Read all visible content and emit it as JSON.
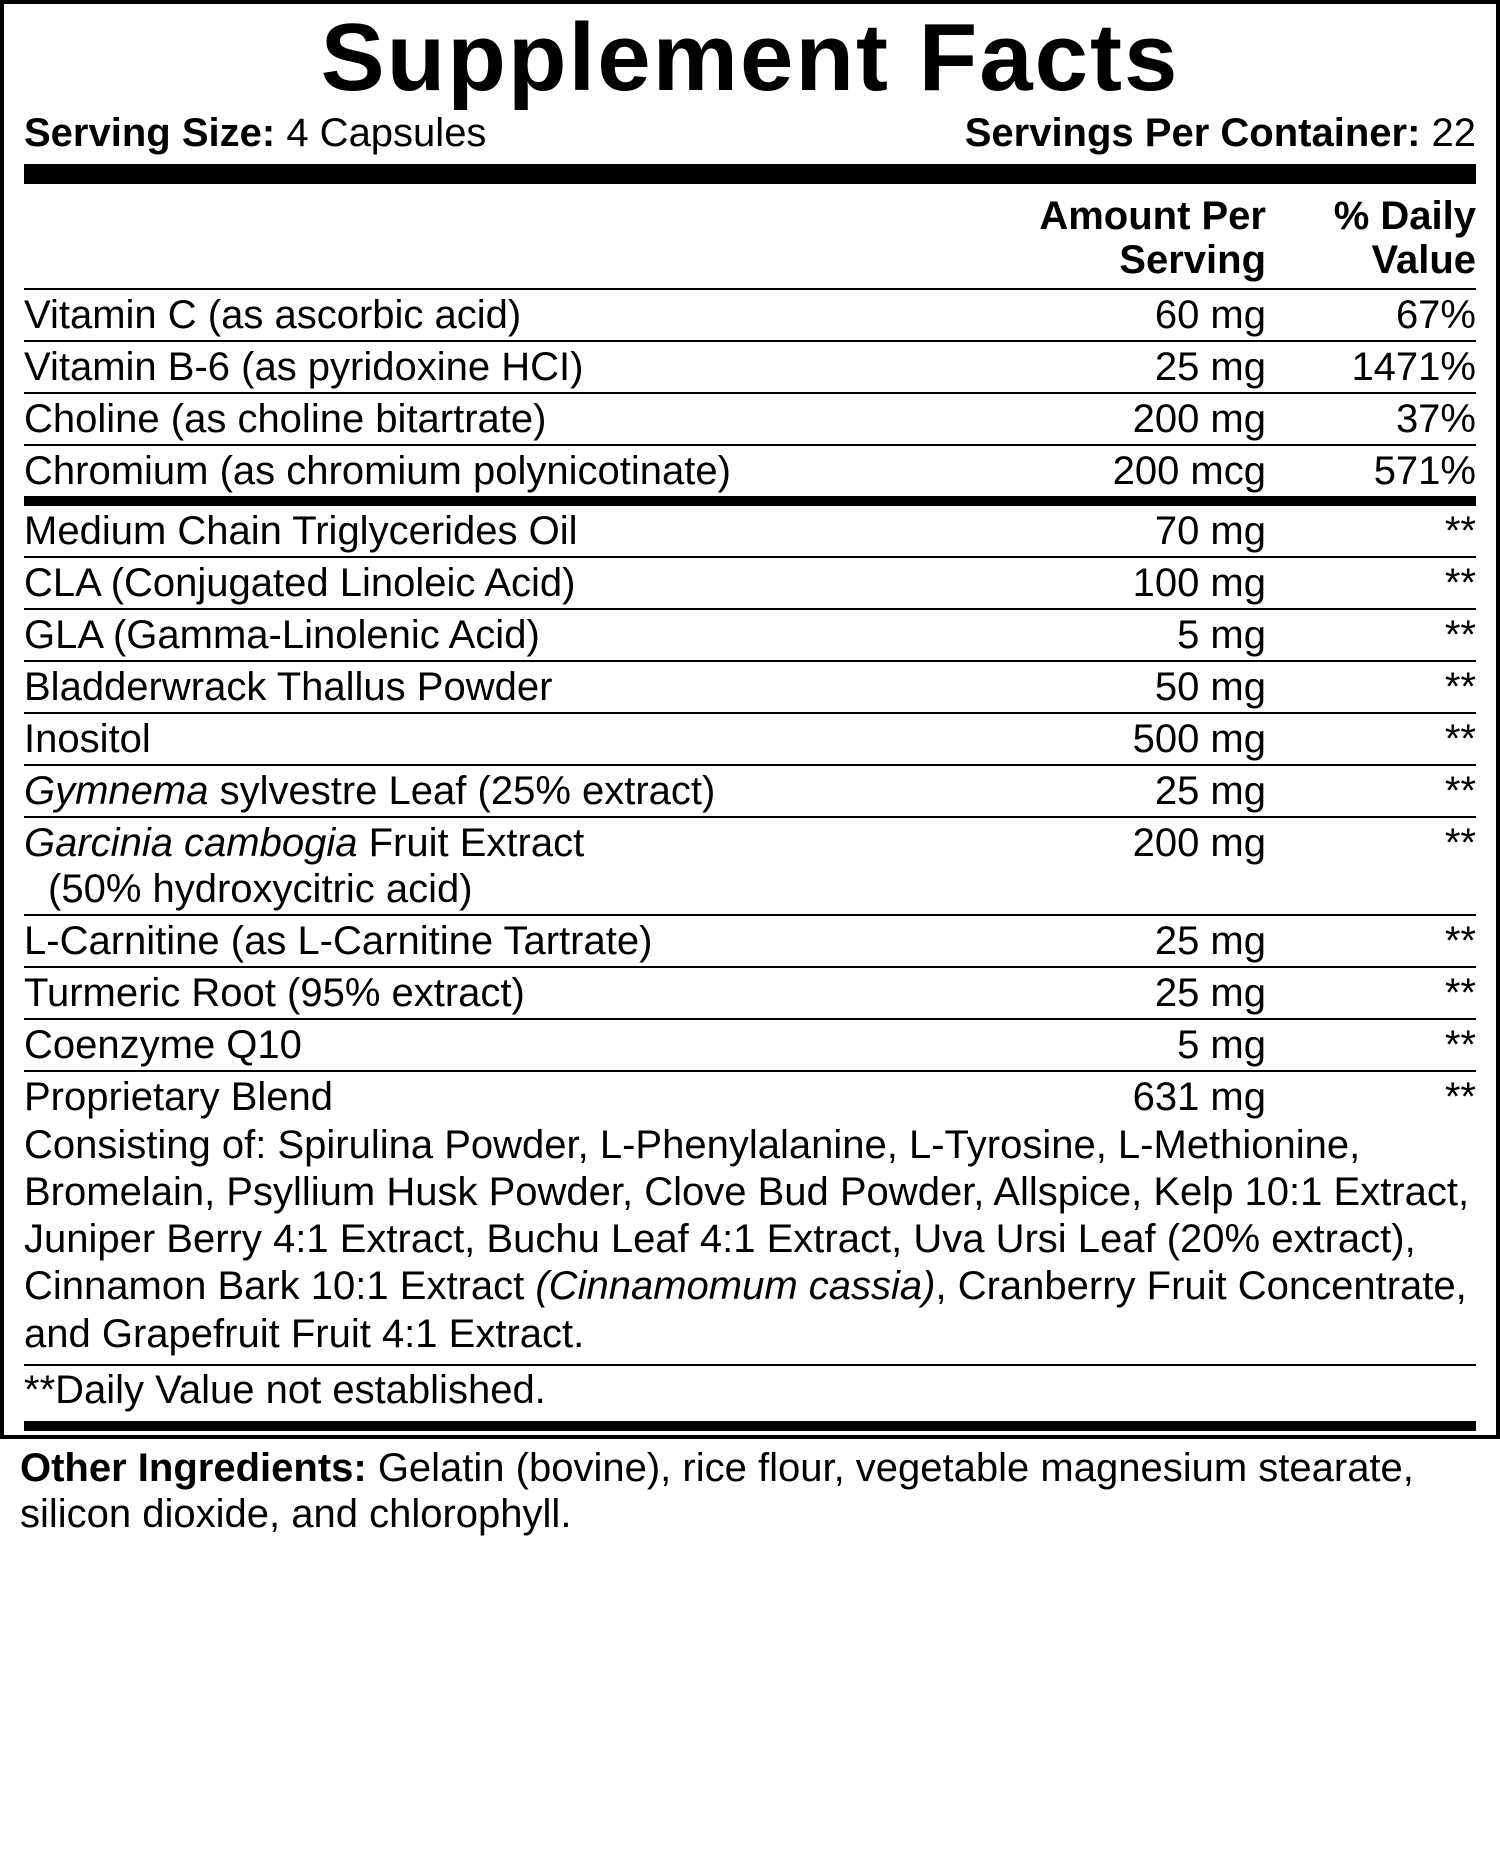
{
  "title": "Supplement Facts",
  "serving": {
    "size_label": "Serving Size:",
    "size_value": " 4 Capsules",
    "per_container_label": "Servings Per Container:",
    "per_container_value": " 22"
  },
  "headers": {
    "amount_line1": "Amount Per",
    "amount_line2": "Serving",
    "dv_line1": "% Daily",
    "dv_line2": "Value"
  },
  "section1": [
    {
      "name": "Vitamin C (as ascorbic acid)",
      "amount": "60 mg",
      "dv": "67%"
    },
    {
      "name": "Vitamin B-6 (as pyridoxine HCI)",
      "amount": "25 mg",
      "dv": "1471%"
    },
    {
      "name": "Choline (as choline bitartrate)",
      "amount": "200 mg",
      "dv": "37%"
    },
    {
      "name": "Chromium (as chromium polynicotinate)",
      "amount": "200 mcg",
      "dv": "571%"
    }
  ],
  "section2": [
    {
      "name": "Medium Chain Triglycerides Oil",
      "amount": "70 mg",
      "dv": "**"
    },
    {
      "name": "CLA (Conjugated Linoleic Acid)",
      "amount": "100 mg",
      "dv": "**"
    },
    {
      "name": "GLA (Gamma-Linolenic Acid)",
      "amount": "5 mg",
      "dv": "**"
    },
    {
      "name": "Bladderwrack Thallus Powder",
      "amount": "50 mg",
      "dv": "**"
    },
    {
      "name": "Inositol",
      "amount": "500 mg",
      "dv": "**"
    }
  ],
  "gymnema": {
    "ital": "Gymnema",
    "rest": " sylvestre Leaf (25% extract)",
    "amount": "25 mg",
    "dv": "**"
  },
  "garcinia": {
    "ital": "Garcinia cambogia",
    "rest": " Fruit Extract",
    "sub": "(50% hydroxycitric acid)",
    "amount": "200 mg",
    "dv": "**"
  },
  "section3": [
    {
      "name": "L-Carnitine (as L-Carnitine Tartrate)",
      "amount": "25 mg",
      "dv": "**"
    },
    {
      "name": "Turmeric Root (95% extract)",
      "amount": "25 mg",
      "dv": "**"
    },
    {
      "name": "Coenzyme Q10",
      "amount": "5 mg",
      "dv": "**"
    }
  ],
  "blend": {
    "name": "Proprietary Blend",
    "amount": "631 mg",
    "dv": "**",
    "desc_part1": "Consisting of: Spirulina Powder, L-Phenylalanine, L-Tyrosine, L-Methionine, Bromelain, Psyllium Husk Powder, Clove Bud Powder, Allspice, Kelp 10:1 Extract, Juniper Berry 4:1 Extract, Buchu Leaf 4:1 Extract, Uva Ursi Leaf (20% extract), Cinnamon Bark 10:1 Extract ",
    "desc_ital": "(Cinnamomum cassia)",
    "desc_part2": ", Cranberry Fruit Concentrate, and Grapefruit Fruit 4:1 Extract."
  },
  "footnote": "**Daily Value not established.",
  "other": {
    "label": "Other Ingredients: ",
    "text": "Gelatin (bovine), rice flour, vegetable magnesium stearate, silicon dioxide, and chlorophyll."
  }
}
